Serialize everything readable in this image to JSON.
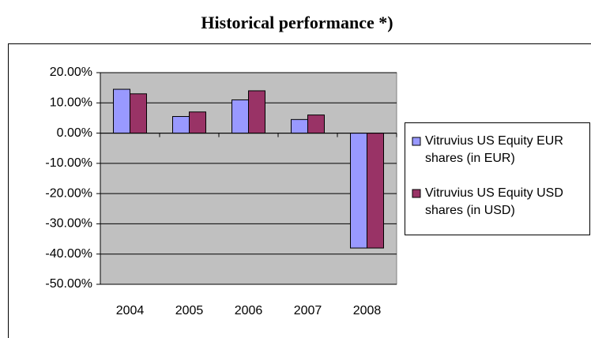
{
  "chart_data": {
    "type": "bar",
    "title": "Historical performance *)",
    "categories": [
      "2004",
      "2005",
      "2006",
      "2007",
      "2008"
    ],
    "series": [
      {
        "name": "Vitruvius US Equity EUR shares (in EUR)",
        "color": "#9999ff",
        "values": [
          14.5,
          5.5,
          11,
          4.5,
          -38
        ]
      },
      {
        "name": "Vitruvius US Equity USD shares (in USD)",
        "color": "#993366",
        "values": [
          13,
          7,
          14,
          6,
          -38
        ]
      }
    ],
    "ylim": [
      -50,
      20
    ],
    "yticks": [
      {
        "value": -50,
        "label": "-50.00%"
      },
      {
        "value": -40,
        "label": "-40.00%"
      },
      {
        "value": -30,
        "label": "-30.00%"
      },
      {
        "value": -20,
        "label": "-20.00%"
      },
      {
        "value": -10,
        "label": "-10.00%"
      },
      {
        "value": 0,
        "label": "0.00%"
      },
      {
        "value": 10,
        "label": "10.00%"
      },
      {
        "value": 20,
        "label": "20.00%"
      }
    ],
    "grid": true,
    "legend": "right"
  }
}
